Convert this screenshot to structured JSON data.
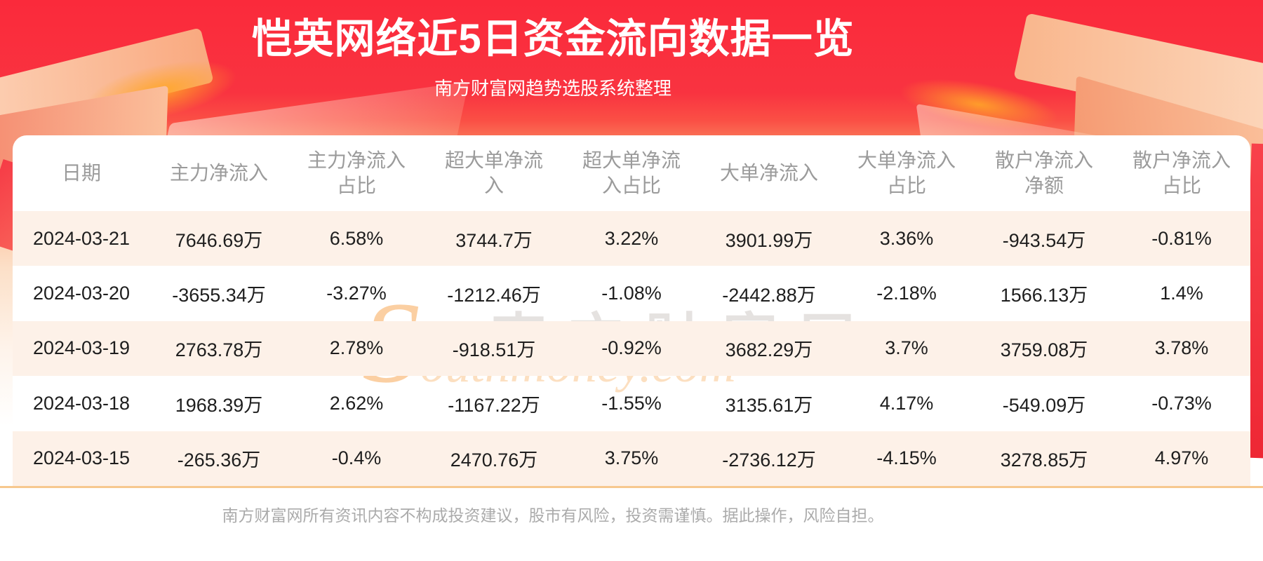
{
  "banner": {
    "title": "恺英网络近5日资金流向数据一览",
    "subtitle": "南方财富网趋势选股系统整理"
  },
  "watermark": {
    "cn": "南方财富网",
    "en": "Southmoney.com"
  },
  "footer": {
    "disclaimer": "南方财富网所有资讯内容不构成投资建议，股市有风险，投资需谨慎。据此操作，风险自担。"
  },
  "colors": {
    "banner_red": "#f93340",
    "ribbon_red": "#ee2734",
    "row_stripe": "#fdf1e8",
    "header_text": "#9b9b9b",
    "cell_text": "#1e1e1e",
    "bottom_line": "#f7c88e",
    "footer_text": "#ababab",
    "title_text": "#ffffff"
  },
  "chart_data": {
    "type": "table",
    "title": "恺英网络近5日资金流向数据一览",
    "subtitle": "南方财富网趋势选股系统整理",
    "columns": [
      "日期",
      "主力净流入",
      "主力净流入占比",
      "超大单净流入",
      "超大单净流入占比",
      "大单净流入",
      "大单净流入占比",
      "散户净流入净额",
      "散户净流入占比"
    ],
    "rows": [
      [
        "2024-03-21",
        "7646.69万",
        "6.58%",
        "3744.7万",
        "3.22%",
        "3901.99万",
        "3.36%",
        "-943.54万",
        "-0.81%"
      ],
      [
        "2024-03-20",
        "-3655.34万",
        "-3.27%",
        "-1212.46万",
        "-1.08%",
        "-2442.88万",
        "-2.18%",
        "1566.13万",
        "1.4%"
      ],
      [
        "2024-03-19",
        "2763.78万",
        "2.78%",
        "-918.51万",
        "-0.92%",
        "3682.29万",
        "3.7%",
        "3759.08万",
        "3.78%"
      ],
      [
        "2024-03-18",
        "1968.39万",
        "2.62%",
        "-1167.22万",
        "-1.55%",
        "3135.61万",
        "4.17%",
        "-549.09万",
        "-0.73%"
      ],
      [
        "2024-03-15",
        "-265.36万",
        "-0.4%",
        "2470.76万",
        "3.75%",
        "-2736.12万",
        "-4.15%",
        "3278.85万",
        "4.97%"
      ]
    ],
    "row_striping": "odd rows light peach #fdf1e8, even rows white",
    "grid": false,
    "legend": false
  }
}
